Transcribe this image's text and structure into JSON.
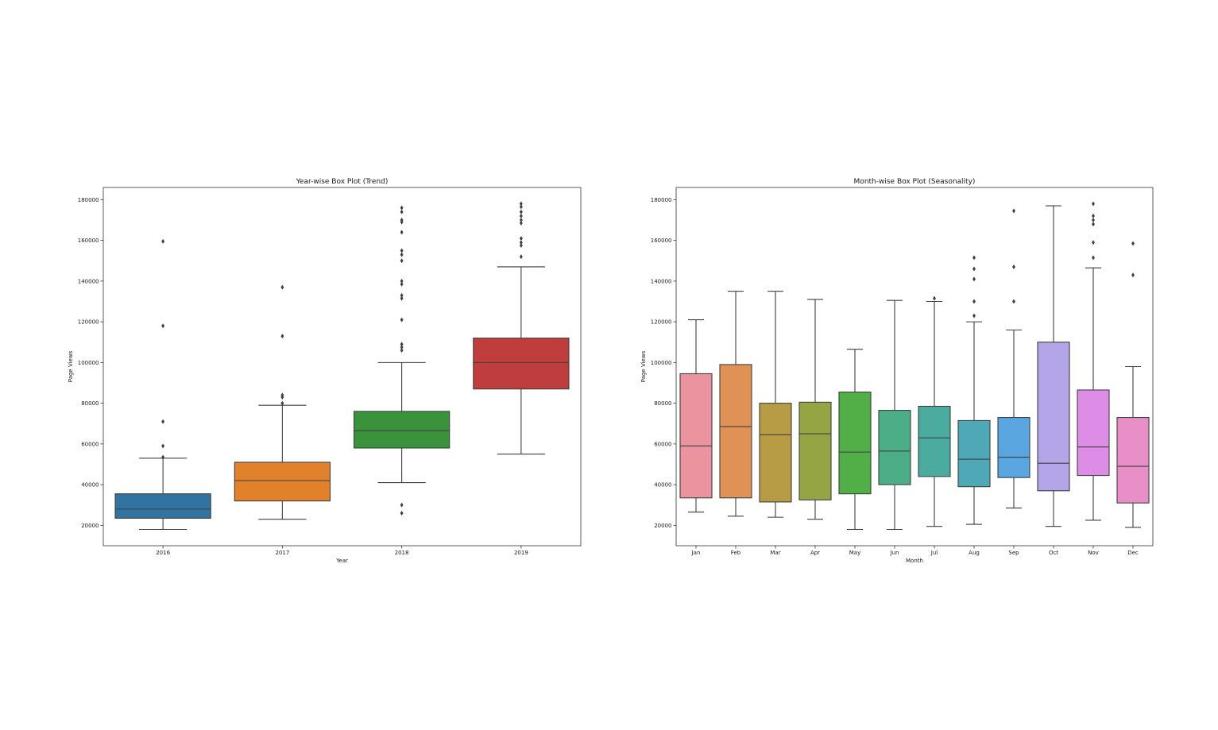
{
  "chart_data": [
    {
      "type": "box",
      "title": "Year-wise Box Plot (Trend)",
      "xlabel": "Year",
      "ylabel": "Page Views",
      "ylim": [
        10000,
        186000
      ],
      "yticks": [
        20000,
        40000,
        60000,
        80000,
        100000,
        120000,
        140000,
        160000,
        180000
      ],
      "grid": false,
      "categories": [
        "2016",
        "2017",
        "2018",
        "2019"
      ],
      "boxes": [
        {
          "category": "2016",
          "color": "#3274a1",
          "whisker_low": 18000,
          "q1": 23500,
          "median": 28000,
          "q3": 35500,
          "whisker_high": 53000,
          "outliers": [
            53500,
            59000,
            71000,
            118000,
            159500
          ]
        },
        {
          "category": "2017",
          "color": "#e1812c",
          "whisker_low": 23000,
          "q1": 32000,
          "median": 42000,
          "q3": 51000,
          "whisker_high": 79000,
          "outliers": [
            80000,
            83000,
            84000,
            113000,
            137000
          ]
        },
        {
          "category": "2018",
          "color": "#3a923a",
          "whisker_low": 41000,
          "q1": 58000,
          "median": 66500,
          "q3": 76000,
          "whisker_high": 100000,
          "outliers": [
            26000,
            30000,
            106000,
            107500,
            109000,
            121000,
            131500,
            133000,
            138500,
            140000,
            150000,
            153000,
            155000,
            164000,
            169000,
            170000,
            174000,
            176000
          ]
        },
        {
          "category": "2019",
          "color": "#c03d3e",
          "whisker_low": 55000,
          "q1": 87000,
          "median": 100000,
          "q3": 112000,
          "whisker_high": 147000,
          "outliers": [
            152000,
            157500,
            159000,
            161000,
            168500,
            170000,
            172000,
            174000,
            176500,
            178000
          ]
        }
      ]
    },
    {
      "type": "box",
      "title": "Month-wise Box Plot (Seasonality)",
      "xlabel": "Month",
      "ylabel": "Page Views",
      "ylim": [
        10000,
        186000
      ],
      "yticks": [
        20000,
        40000,
        60000,
        80000,
        100000,
        120000,
        140000,
        160000,
        180000
      ],
      "grid": false,
      "categories": [
        "Jan",
        "Feb",
        "Mar",
        "Apr",
        "May",
        "Jun",
        "Jul",
        "Aug",
        "Sep",
        "Oct",
        "Nov",
        "Dec"
      ],
      "boxes": [
        {
          "category": "Jan",
          "color": "#e9949f",
          "whisker_low": 26500,
          "q1": 33500,
          "median": 59000,
          "q3": 94500,
          "whisker_high": 121000,
          "outliers": []
        },
        {
          "category": "Feb",
          "color": "#e09155",
          "whisker_low": 24500,
          "q1": 33500,
          "median": 68500,
          "q3": 99000,
          "whisker_high": 135000,
          "outliers": []
        },
        {
          "category": "Mar",
          "color": "#b89c45",
          "whisker_low": 24000,
          "q1": 31500,
          "median": 64500,
          "q3": 80000,
          "whisker_high": 135000,
          "outliers": []
        },
        {
          "category": "Apr",
          "color": "#96a543",
          "whisker_low": 23000,
          "q1": 32500,
          "median": 65000,
          "q3": 80500,
          "whisker_high": 131000,
          "outliers": []
        },
        {
          "category": "May",
          "color": "#52af47",
          "whisker_low": 18000,
          "q1": 35500,
          "median": 56000,
          "q3": 85500,
          "whisker_high": 106500,
          "outliers": []
        },
        {
          "category": "Jun",
          "color": "#4bae86",
          "whisker_low": 18000,
          "q1": 40000,
          "median": 56500,
          "q3": 76500,
          "whisker_high": 130500,
          "outliers": []
        },
        {
          "category": "Jul",
          "color": "#4aab9e",
          "whisker_low": 19500,
          "q1": 44000,
          "median": 63000,
          "q3": 78500,
          "whisker_high": 130000,
          "outliers": [
            131500
          ]
        },
        {
          "category": "Aug",
          "color": "#4ea8b5",
          "whisker_low": 20500,
          "q1": 39000,
          "median": 52500,
          "q3": 71500,
          "whisker_high": 120000,
          "outliers": [
            123000,
            130000,
            141000,
            146000,
            151500
          ]
        },
        {
          "category": "Sep",
          "color": "#5aa6e0",
          "whisker_low": 28500,
          "q1": 43500,
          "median": 53500,
          "q3": 73000,
          "whisker_high": 116000,
          "outliers": [
            130000,
            147000,
            174500
          ]
        },
        {
          "category": "Oct",
          "color": "#b4a5e8",
          "whisker_low": 19500,
          "q1": 37000,
          "median": 50500,
          "q3": 110000,
          "whisker_high": 177000,
          "outliers": []
        },
        {
          "category": "Nov",
          "color": "#de8de6",
          "whisker_low": 22500,
          "q1": 44500,
          "median": 58500,
          "q3": 86500,
          "whisker_high": 146500,
          "outliers": [
            151500,
            159000,
            168000,
            170000,
            172000,
            178000
          ]
        },
        {
          "category": "Dec",
          "color": "#e78fc6",
          "whisker_low": 19000,
          "q1": 31000,
          "median": 49000,
          "q3": 73000,
          "whisker_high": 98000,
          "outliers": [
            143000,
            158500
          ]
        }
      ]
    }
  ]
}
